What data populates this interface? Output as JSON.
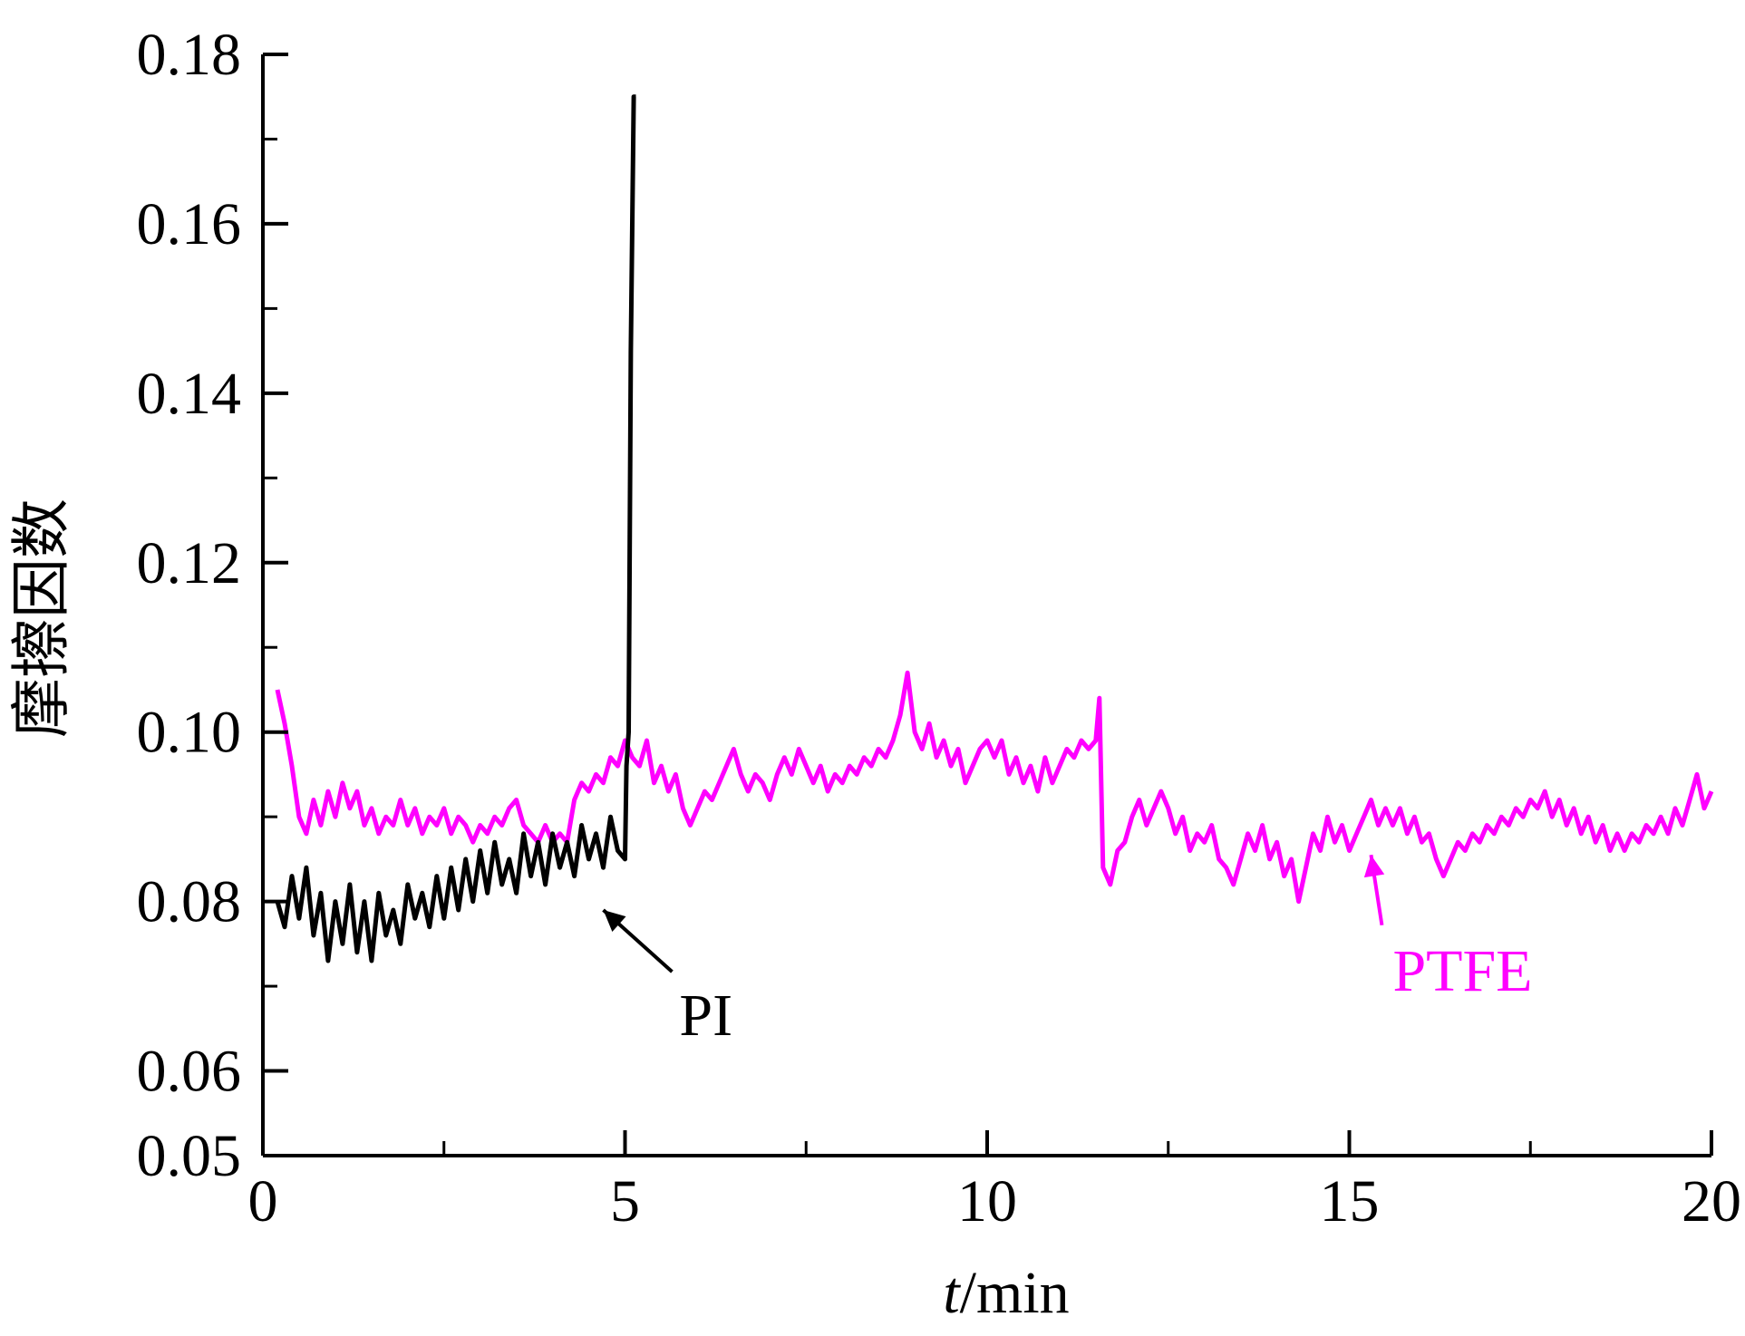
{
  "chart_data": {
    "type": "line",
    "title": "",
    "xlabel": {
      "italic": "t",
      "rest": "/min"
    },
    "ylabel": "摩擦因数",
    "xlim": [
      0,
      20
    ],
    "ylim": [
      0.05,
      0.18
    ],
    "x_ticks": [
      {
        "value": 0,
        "label": "0"
      },
      {
        "value": 5,
        "label": "5"
      },
      {
        "value": 10,
        "label": "10"
      },
      {
        "value": 15,
        "label": "15"
      },
      {
        "value": 20,
        "label": "20"
      }
    ],
    "y_ticks": [
      {
        "value": 0.05,
        "label": "0.05"
      },
      {
        "value": 0.06,
        "label": "0.06"
      },
      {
        "value": 0.08,
        "label": "0.08"
      },
      {
        "value": 0.1,
        "label": "0.10"
      },
      {
        "value": 0.12,
        "label": "0.12"
      },
      {
        "value": 0.14,
        "label": "0.14"
      },
      {
        "value": 0.16,
        "label": "0.16"
      },
      {
        "value": 0.18,
        "label": "0.18"
      }
    ],
    "grid": false,
    "series": [
      {
        "name": "PI",
        "color": "#000000",
        "label_anchor": {
          "x": 4.7,
          "y": 0.079
        },
        "label_text_at": {
          "x": 5.75,
          "y": 0.0685
        },
        "points": [
          [
            0.2,
            0.08
          ],
          [
            0.3,
            0.077
          ],
          [
            0.4,
            0.083
          ],
          [
            0.5,
            0.078
          ],
          [
            0.6,
            0.084
          ],
          [
            0.7,
            0.076
          ],
          [
            0.8,
            0.081
          ],
          [
            0.9,
            0.073
          ],
          [
            1.0,
            0.08
          ],
          [
            1.1,
            0.075
          ],
          [
            1.2,
            0.082
          ],
          [
            1.3,
            0.074
          ],
          [
            1.4,
            0.08
          ],
          [
            1.5,
            0.073
          ],
          [
            1.6,
            0.081
          ],
          [
            1.7,
            0.076
          ],
          [
            1.8,
            0.079
          ],
          [
            1.9,
            0.075
          ],
          [
            2.0,
            0.082
          ],
          [
            2.1,
            0.078
          ],
          [
            2.2,
            0.081
          ],
          [
            2.3,
            0.077
          ],
          [
            2.4,
            0.083
          ],
          [
            2.5,
            0.078
          ],
          [
            2.6,
            0.084
          ],
          [
            2.7,
            0.079
          ],
          [
            2.8,
            0.085
          ],
          [
            2.9,
            0.08
          ],
          [
            3.0,
            0.086
          ],
          [
            3.1,
            0.081
          ],
          [
            3.2,
            0.087
          ],
          [
            3.3,
            0.082
          ],
          [
            3.4,
            0.085
          ],
          [
            3.5,
            0.081
          ],
          [
            3.6,
            0.088
          ],
          [
            3.7,
            0.083
          ],
          [
            3.8,
            0.087
          ],
          [
            3.9,
            0.082
          ],
          [
            4.0,
            0.088
          ],
          [
            4.1,
            0.084
          ],
          [
            4.2,
            0.087
          ],
          [
            4.3,
            0.083
          ],
          [
            4.4,
            0.089
          ],
          [
            4.5,
            0.085
          ],
          [
            4.6,
            0.088
          ],
          [
            4.7,
            0.084
          ],
          [
            4.8,
            0.09
          ],
          [
            4.9,
            0.086
          ],
          [
            5.0,
            0.085
          ],
          [
            5.02,
            0.096
          ],
          [
            5.05,
            0.1
          ],
          [
            5.08,
            0.145
          ],
          [
            5.12,
            0.175
          ],
          [
            5.15,
            0.175
          ]
        ]
      },
      {
        "name": "PTFE",
        "color": "#ff00ff",
        "label_anchor": {
          "x": 15.3,
          "y": 0.0855
        },
        "label_text_at": {
          "x": 15.6,
          "y": 0.0695
        },
        "points": [
          [
            0.2,
            0.105
          ],
          [
            0.3,
            0.101
          ],
          [
            0.4,
            0.096
          ],
          [
            0.5,
            0.09
          ],
          [
            0.6,
            0.088
          ],
          [
            0.7,
            0.092
          ],
          [
            0.8,
            0.089
          ],
          [
            0.9,
            0.093
          ],
          [
            1.0,
            0.09
          ],
          [
            1.1,
            0.094
          ],
          [
            1.2,
            0.091
          ],
          [
            1.3,
            0.093
          ],
          [
            1.4,
            0.089
          ],
          [
            1.5,
            0.091
          ],
          [
            1.6,
            0.088
          ],
          [
            1.7,
            0.09
          ],
          [
            1.8,
            0.089
          ],
          [
            1.9,
            0.092
          ],
          [
            2.0,
            0.089
          ],
          [
            2.1,
            0.091
          ],
          [
            2.2,
            0.088
          ],
          [
            2.3,
            0.09
          ],
          [
            2.4,
            0.089
          ],
          [
            2.5,
            0.091
          ],
          [
            2.6,
            0.088
          ],
          [
            2.7,
            0.09
          ],
          [
            2.8,
            0.089
          ],
          [
            2.9,
            0.087
          ],
          [
            3.0,
            0.089
          ],
          [
            3.1,
            0.088
          ],
          [
            3.2,
            0.09
          ],
          [
            3.3,
            0.089
          ],
          [
            3.4,
            0.091
          ],
          [
            3.5,
            0.092
          ],
          [
            3.6,
            0.089
          ],
          [
            3.7,
            0.088
          ],
          [
            3.8,
            0.087
          ],
          [
            3.9,
            0.089
          ],
          [
            4.0,
            0.087
          ],
          [
            4.1,
            0.088
          ],
          [
            4.2,
            0.087
          ],
          [
            4.3,
            0.092
          ],
          [
            4.4,
            0.094
          ],
          [
            4.5,
            0.093
          ],
          [
            4.6,
            0.095
          ],
          [
            4.7,
            0.094
          ],
          [
            4.8,
            0.097
          ],
          [
            4.9,
            0.096
          ],
          [
            5.0,
            0.099
          ],
          [
            5.1,
            0.097
          ],
          [
            5.2,
            0.096
          ],
          [
            5.3,
            0.099
          ],
          [
            5.4,
            0.094
          ],
          [
            5.5,
            0.096
          ],
          [
            5.6,
            0.093
          ],
          [
            5.7,
            0.095
          ],
          [
            5.8,
            0.091
          ],
          [
            5.9,
            0.089
          ],
          [
            6.0,
            0.091
          ],
          [
            6.1,
            0.093
          ],
          [
            6.2,
            0.092
          ],
          [
            6.3,
            0.094
          ],
          [
            6.4,
            0.096
          ],
          [
            6.5,
            0.098
          ],
          [
            6.6,
            0.095
          ],
          [
            6.7,
            0.093
          ],
          [
            6.8,
            0.095
          ],
          [
            6.9,
            0.094
          ],
          [
            7.0,
            0.092
          ],
          [
            7.1,
            0.095
          ],
          [
            7.2,
            0.097
          ],
          [
            7.3,
            0.095
          ],
          [
            7.4,
            0.098
          ],
          [
            7.5,
            0.096
          ],
          [
            7.6,
            0.094
          ],
          [
            7.7,
            0.096
          ],
          [
            7.8,
            0.093
          ],
          [
            7.9,
            0.095
          ],
          [
            8.0,
            0.094
          ],
          [
            8.1,
            0.096
          ],
          [
            8.2,
            0.095
          ],
          [
            8.3,
            0.097
          ],
          [
            8.4,
            0.096
          ],
          [
            8.5,
            0.098
          ],
          [
            8.6,
            0.097
          ],
          [
            8.7,
            0.099
          ],
          [
            8.8,
            0.102
          ],
          [
            8.9,
            0.107
          ],
          [
            9.0,
            0.1
          ],
          [
            9.1,
            0.098
          ],
          [
            9.2,
            0.101
          ],
          [
            9.3,
            0.097
          ],
          [
            9.4,
            0.099
          ],
          [
            9.5,
            0.096
          ],
          [
            9.6,
            0.098
          ],
          [
            9.7,
            0.094
          ],
          [
            9.8,
            0.096
          ],
          [
            9.9,
            0.098
          ],
          [
            10.0,
            0.099
          ],
          [
            10.1,
            0.097
          ],
          [
            10.2,
            0.099
          ],
          [
            10.3,
            0.095
          ],
          [
            10.4,
            0.097
          ],
          [
            10.5,
            0.094
          ],
          [
            10.6,
            0.096
          ],
          [
            10.7,
            0.093
          ],
          [
            10.8,
            0.097
          ],
          [
            10.9,
            0.094
          ],
          [
            11.0,
            0.096
          ],
          [
            11.1,
            0.098
          ],
          [
            11.2,
            0.097
          ],
          [
            11.3,
            0.099
          ],
          [
            11.4,
            0.098
          ],
          [
            11.5,
            0.099
          ],
          [
            11.55,
            0.104
          ],
          [
            11.6,
            0.084
          ],
          [
            11.7,
            0.082
          ],
          [
            11.8,
            0.086
          ],
          [
            11.9,
            0.087
          ],
          [
            12.0,
            0.09
          ],
          [
            12.1,
            0.092
          ],
          [
            12.2,
            0.089
          ],
          [
            12.3,
            0.091
          ],
          [
            12.4,
            0.093
          ],
          [
            12.5,
            0.091
          ],
          [
            12.6,
            0.088
          ],
          [
            12.7,
            0.09
          ],
          [
            12.8,
            0.086
          ],
          [
            12.9,
            0.088
          ],
          [
            13.0,
            0.087
          ],
          [
            13.1,
            0.089
          ],
          [
            13.2,
            0.085
          ],
          [
            13.3,
            0.084
          ],
          [
            13.4,
            0.082
          ],
          [
            13.5,
            0.085
          ],
          [
            13.6,
            0.088
          ],
          [
            13.7,
            0.086
          ],
          [
            13.8,
            0.089
          ],
          [
            13.9,
            0.085
          ],
          [
            14.0,
            0.087
          ],
          [
            14.1,
            0.083
          ],
          [
            14.2,
            0.085
          ],
          [
            14.3,
            0.08
          ],
          [
            14.4,
            0.084
          ],
          [
            14.5,
            0.088
          ],
          [
            14.6,
            0.086
          ],
          [
            14.7,
            0.09
          ],
          [
            14.8,
            0.087
          ],
          [
            14.9,
            0.089
          ],
          [
            15.0,
            0.086
          ],
          [
            15.1,
            0.088
          ],
          [
            15.2,
            0.09
          ],
          [
            15.3,
            0.092
          ],
          [
            15.4,
            0.089
          ],
          [
            15.5,
            0.091
          ],
          [
            15.6,
            0.089
          ],
          [
            15.7,
            0.091
          ],
          [
            15.8,
            0.088
          ],
          [
            15.9,
            0.09
          ],
          [
            16.0,
            0.087
          ],
          [
            16.1,
            0.088
          ],
          [
            16.2,
            0.085
          ],
          [
            16.3,
            0.083
          ],
          [
            16.4,
            0.085
          ],
          [
            16.5,
            0.087
          ],
          [
            16.6,
            0.086
          ],
          [
            16.7,
            0.088
          ],
          [
            16.8,
            0.087
          ],
          [
            16.9,
            0.089
          ],
          [
            17.0,
            0.088
          ],
          [
            17.1,
            0.09
          ],
          [
            17.2,
            0.089
          ],
          [
            17.3,
            0.091
          ],
          [
            17.4,
            0.09
          ],
          [
            17.5,
            0.092
          ],
          [
            17.6,
            0.091
          ],
          [
            17.7,
            0.093
          ],
          [
            17.8,
            0.09
          ],
          [
            17.9,
            0.092
          ],
          [
            18.0,
            0.089
          ],
          [
            18.1,
            0.091
          ],
          [
            18.2,
            0.088
          ],
          [
            18.3,
            0.09
          ],
          [
            18.4,
            0.087
          ],
          [
            18.5,
            0.089
          ],
          [
            18.6,
            0.086
          ],
          [
            18.7,
            0.088
          ],
          [
            18.8,
            0.086
          ],
          [
            18.9,
            0.088
          ],
          [
            19.0,
            0.087
          ],
          [
            19.1,
            0.089
          ],
          [
            19.2,
            0.088
          ],
          [
            19.3,
            0.09
          ],
          [
            19.4,
            0.088
          ],
          [
            19.5,
            0.091
          ],
          [
            19.6,
            0.089
          ],
          [
            19.7,
            0.092
          ],
          [
            19.8,
            0.095
          ],
          [
            19.9,
            0.091
          ],
          [
            20.0,
            0.093
          ]
        ]
      }
    ]
  }
}
